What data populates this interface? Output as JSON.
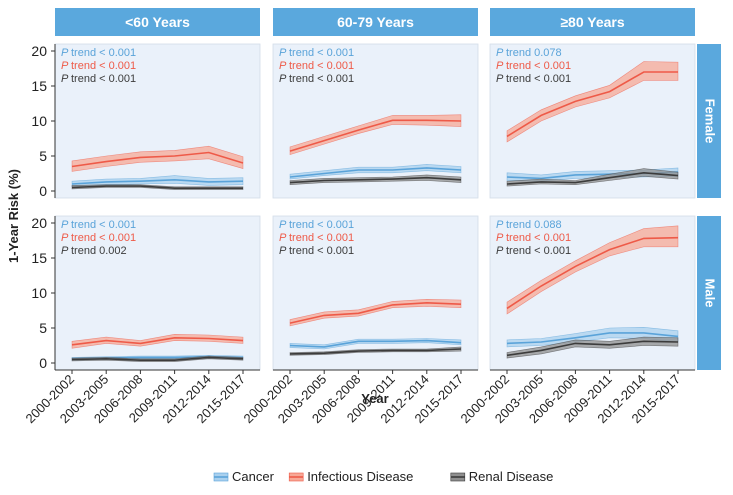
{
  "chart_data": {
    "type": "line",
    "ylabel": "1-Year Risk (%)",
    "xlabel": "Year",
    "ylim": [
      0,
      20
    ],
    "yticks": [
      0,
      5,
      10,
      15,
      20
    ],
    "categories": [
      "2000-2002",
      "2003-2005",
      "2006-2008",
      "2009-2011",
      "2012-2014",
      "2015-2017"
    ],
    "columns": [
      "<60 Years",
      "60-79 Years",
      "≥80 Years"
    ],
    "rows": [
      "Female",
      "Male"
    ],
    "legend_position": "bottom",
    "series_meta": [
      {
        "key": "cancer",
        "name": "Cancer",
        "line": "#5aa3d9",
        "band": "#a9d0ee"
      },
      {
        "key": "infectious",
        "name": "Infectious Disease",
        "line": "#ee5a48",
        "band": "#f7a896"
      },
      {
        "key": "renal",
        "name": "Renal Disease",
        "line": "#3c3c3c",
        "band": "#8f8f8f"
      }
    ],
    "colors": {
      "strip": "#5aa8dd",
      "panel_bg": "#eaf1fa"
    },
    "ptrend_prefix": "P",
    "panels": [
      {
        "row": "Female",
        "col": "<60 Years",
        "ptrend": [
          {
            "key": "cancer",
            "text": "trend < 0.001"
          },
          {
            "key": "infectious",
            "text": "trend < 0.001"
          },
          {
            "key": "renal",
            "text": "trend < 0.001"
          }
        ],
        "series": {
          "cancer": {
            "values": [
              1.0,
              1.3,
              1.4,
              1.6,
              1.3,
              1.4
            ],
            "lower": [
              0.6,
              0.9,
              1.0,
              1.1,
              0.8,
              0.9
            ],
            "upper": [
              1.4,
              1.7,
              1.8,
              2.2,
              1.8,
              1.9
            ]
          },
          "infectious": {
            "values": [
              3.5,
              4.2,
              4.8,
              5.0,
              5.5,
              4.0
            ],
            "lower": [
              2.8,
              3.5,
              4.1,
              4.3,
              4.6,
              3.2
            ],
            "upper": [
              4.3,
              5.0,
              5.6,
              5.8,
              6.4,
              4.9
            ]
          },
          "renal": {
            "values": [
              0.5,
              0.7,
              0.7,
              0.4,
              0.4,
              0.4
            ],
            "lower": [
              0.3,
              0.5,
              0.5,
              0.2,
              0.2,
              0.2
            ],
            "upper": [
              0.8,
              0.9,
              0.9,
              0.6,
              0.6,
              0.6
            ]
          }
        }
      },
      {
        "row": "Female",
        "col": "60-79 Years",
        "ptrend": [
          {
            "key": "cancer",
            "text": "trend < 0.001"
          },
          {
            "key": "infectious",
            "text": "trend < 0.001"
          },
          {
            "key": "renal",
            "text": "trend < 0.001"
          }
        ],
        "series": {
          "cancer": {
            "values": [
              2.0,
              2.5,
              3.0,
              3.0,
              3.3,
              3.0
            ],
            "lower": [
              1.7,
              2.2,
              2.6,
              2.6,
              2.9,
              2.6
            ],
            "upper": [
              2.4,
              2.9,
              3.4,
              3.4,
              3.8,
              3.5
            ]
          },
          "infectious": {
            "values": [
              5.7,
              7.2,
              8.7,
              10.1,
              10.1,
              10.0
            ],
            "lower": [
              5.2,
              6.7,
              8.2,
              9.5,
              9.4,
              9.2
            ],
            "upper": [
              6.3,
              7.8,
              9.3,
              10.8,
              10.8,
              10.9
            ]
          },
          "renal": {
            "values": [
              1.2,
              1.5,
              1.6,
              1.7,
              1.9,
              1.6
            ],
            "lower": [
              0.9,
              1.2,
              1.3,
              1.4,
              1.5,
              1.2
            ],
            "upper": [
              1.5,
              1.8,
              1.9,
              2.0,
              2.3,
              2.0
            ]
          }
        }
      },
      {
        "row": "Female",
        "col": "≥80 Years",
        "ptrend": [
          {
            "key": "cancer",
            "text": "trend  0.078"
          },
          {
            "key": "infectious",
            "text": "trend < 0.001"
          },
          {
            "key": "renal",
            "text": "trend < 0.001"
          }
        ],
        "series": {
          "cancer": {
            "values": [
              2.0,
              1.8,
              2.3,
              2.4,
              2.5,
              2.7
            ],
            "lower": [
              1.5,
              1.4,
              1.8,
              1.9,
              2.0,
              2.1
            ],
            "upper": [
              2.6,
              2.3,
              2.8,
              2.9,
              3.0,
              3.3
            ]
          },
          "infectious": {
            "values": [
              7.8,
              10.8,
              12.8,
              14.2,
              17.0,
              17.0
            ],
            "lower": [
              7.0,
              10.0,
              12.0,
              13.3,
              15.8,
              15.8
            ],
            "upper": [
              8.6,
              11.6,
              13.6,
              15.1,
              18.5,
              18.4
            ]
          },
          "renal": {
            "values": [
              1.0,
              1.3,
              1.2,
              1.9,
              2.6,
              2.2
            ],
            "lower": [
              0.7,
              1.0,
              0.9,
              1.5,
              2.1,
              1.7
            ],
            "upper": [
              1.4,
              1.7,
              1.5,
              2.4,
              3.2,
              2.7
            ]
          }
        }
      },
      {
        "row": "Male",
        "col": "<60 Years",
        "ptrend": [
          {
            "key": "cancer",
            "text": "trend < 0.001"
          },
          {
            "key": "infectious",
            "text": "trend < 0.001"
          },
          {
            "key": "renal",
            "text": "trend  0.002"
          }
        ],
        "series": {
          "cancer": {
            "values": [
              0.6,
              0.7,
              0.8,
              0.8,
              0.9,
              0.8
            ],
            "lower": [
              0.4,
              0.5,
              0.6,
              0.6,
              0.7,
              0.6
            ],
            "upper": [
              0.8,
              0.9,
              1.0,
              1.0,
              1.1,
              1.0
            ]
          },
          "infectious": {
            "values": [
              2.6,
              3.2,
              2.8,
              3.6,
              3.5,
              3.2
            ],
            "lower": [
              2.1,
              2.8,
              2.4,
              3.2,
              3.1,
              2.8
            ],
            "upper": [
              3.1,
              3.7,
              3.2,
              4.1,
              4.0,
              3.7
            ]
          },
          "renal": {
            "values": [
              0.5,
              0.6,
              0.4,
              0.4,
              0.8,
              0.6
            ],
            "lower": [
              0.3,
              0.4,
              0.2,
              0.2,
              0.6,
              0.4
            ],
            "upper": [
              0.7,
              0.8,
              0.6,
              0.6,
              1.0,
              0.8
            ]
          }
        }
      },
      {
        "row": "Male",
        "col": "60-79 Years",
        "ptrend": [
          {
            "key": "cancer",
            "text": "trend < 0.001"
          },
          {
            "key": "infectious",
            "text": "trend < 0.001"
          },
          {
            "key": "renal",
            "text": "trend < 0.001"
          }
        ],
        "series": {
          "cancer": {
            "values": [
              2.5,
              2.3,
              3.1,
              3.1,
              3.2,
              2.9
            ],
            "lower": [
              2.2,
              2.0,
              2.8,
              2.8,
              2.9,
              2.6
            ],
            "upper": [
              2.8,
              2.6,
              3.4,
              3.4,
              3.5,
              3.3
            ]
          },
          "infectious": {
            "values": [
              5.7,
              6.8,
              7.1,
              8.3,
              8.6,
              8.4
            ],
            "lower": [
              5.3,
              6.4,
              6.7,
              7.9,
              8.1,
              7.9
            ],
            "upper": [
              6.2,
              7.3,
              7.6,
              8.8,
              9.1,
              9.0
            ]
          },
          "renal": {
            "values": [
              1.3,
              1.4,
              1.7,
              1.8,
              1.8,
              2.0
            ],
            "lower": [
              1.1,
              1.2,
              1.5,
              1.6,
              1.6,
              1.7
            ],
            "upper": [
              1.5,
              1.6,
              1.9,
              2.0,
              2.0,
              2.3
            ]
          }
        }
      },
      {
        "row": "Male",
        "col": "≥80 Years",
        "ptrend": [
          {
            "key": "cancer",
            "text": "trend  0.088"
          },
          {
            "key": "infectious",
            "text": "trend < 0.001"
          },
          {
            "key": "renal",
            "text": "trend < 0.001"
          }
        ],
        "series": {
          "cancer": {
            "values": [
              2.8,
              3.0,
              3.6,
              4.3,
              4.3,
              3.8
            ],
            "lower": [
              2.3,
              2.5,
              3.0,
              3.6,
              3.5,
              3.0
            ],
            "upper": [
              3.3,
              3.5,
              4.2,
              5.0,
              5.1,
              4.6
            ]
          },
          "infectious": {
            "values": [
              7.8,
              11.0,
              13.8,
              16.2,
              17.8,
              17.9
            ],
            "lower": [
              7.0,
              10.2,
              13.0,
              15.3,
              16.6,
              16.6
            ],
            "upper": [
              8.7,
              11.8,
              14.6,
              17.2,
              19.2,
              19.6
            ]
          },
          "renal": {
            "values": [
              1.1,
              1.8,
              2.8,
              2.6,
              3.1,
              3.0
            ],
            "lower": [
              0.7,
              1.3,
              2.3,
              2.1,
              2.5,
              2.4
            ],
            "upper": [
              1.5,
              2.3,
              3.3,
              3.1,
              3.7,
              3.6
            ]
          }
        }
      }
    ]
  }
}
